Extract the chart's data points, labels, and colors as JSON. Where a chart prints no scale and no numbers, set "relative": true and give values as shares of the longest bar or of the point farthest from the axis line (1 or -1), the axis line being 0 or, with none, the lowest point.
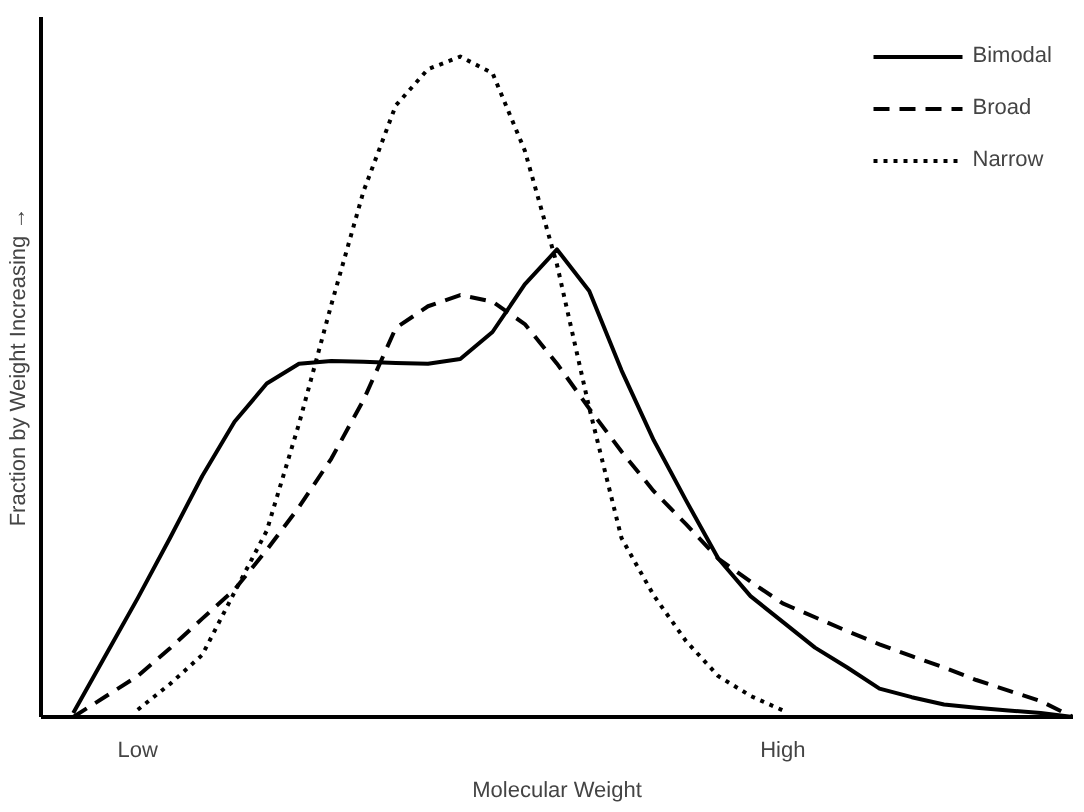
{
  "chart_data": {
    "type": "line",
    "relative": true,
    "xlabel": "Molecular Weight",
    "ylabel": "Fraction by Weight Increasing →",
    "categories": [
      null,
      null,
      null,
      "Low",
      null,
      null,
      null,
      null,
      null,
      null,
      null,
      null,
      null,
      null,
      null,
      null,
      null,
      null,
      null,
      null,
      null,
      null,
      null,
      "High",
      null,
      null,
      null,
      null,
      null,
      null,
      null,
      null,
      null
    ],
    "grid": false,
    "legend": "top right",
    "series": [
      {
        "name": "Bimodal",
        "color": "#000000",
        "line_style": "solid",
        "values": [
          null,
          0.006,
          0.093,
          0.18,
          0.271,
          0.365,
          0.447,
          0.505,
          0.535,
          0.539,
          0.538,
          0.536,
          0.535,
          0.542,
          0.583,
          0.655,
          0.708,
          0.645,
          0.525,
          0.419,
          0.328,
          0.24,
          0.183,
          0.144,
          0.105,
          0.075,
          0.043,
          0.03,
          0.019,
          0.014,
          0.01,
          0.006,
          0
        ]
      },
      {
        "name": "Broad",
        "color": "#000000",
        "line_style": "dashed",
        "values": [
          null,
          0,
          0.031,
          0.062,
          0.104,
          0.149,
          0.193,
          0.253,
          0.318,
          0.391,
          0.48,
          0.589,
          0.622,
          0.639,
          0.629,
          0.595,
          0.535,
          0.467,
          0.402,
          0.342,
          0.292,
          0.24,
          0.205,
          0.172,
          0.151,
          0.13,
          0.11,
          0.092,
          0.075,
          0.056,
          0.04,
          0.024,
          0
        ]
      },
      {
        "name": "Narrow",
        "color": "#000000",
        "line_style": "dotted",
        "values": [
          null,
          null,
          null,
          0.011,
          0.05,
          0.094,
          0.189,
          0.282,
          0.444,
          0.624,
          0.796,
          0.926,
          0.981,
          1,
          0.975,
          0.858,
          0.685,
          0.468,
          0.271,
          0.184,
          0.115,
          0.062,
          0.032,
          0.01,
          null,
          null,
          null,
          null,
          null,
          null,
          null,
          null,
          null
        ]
      }
    ]
  }
}
